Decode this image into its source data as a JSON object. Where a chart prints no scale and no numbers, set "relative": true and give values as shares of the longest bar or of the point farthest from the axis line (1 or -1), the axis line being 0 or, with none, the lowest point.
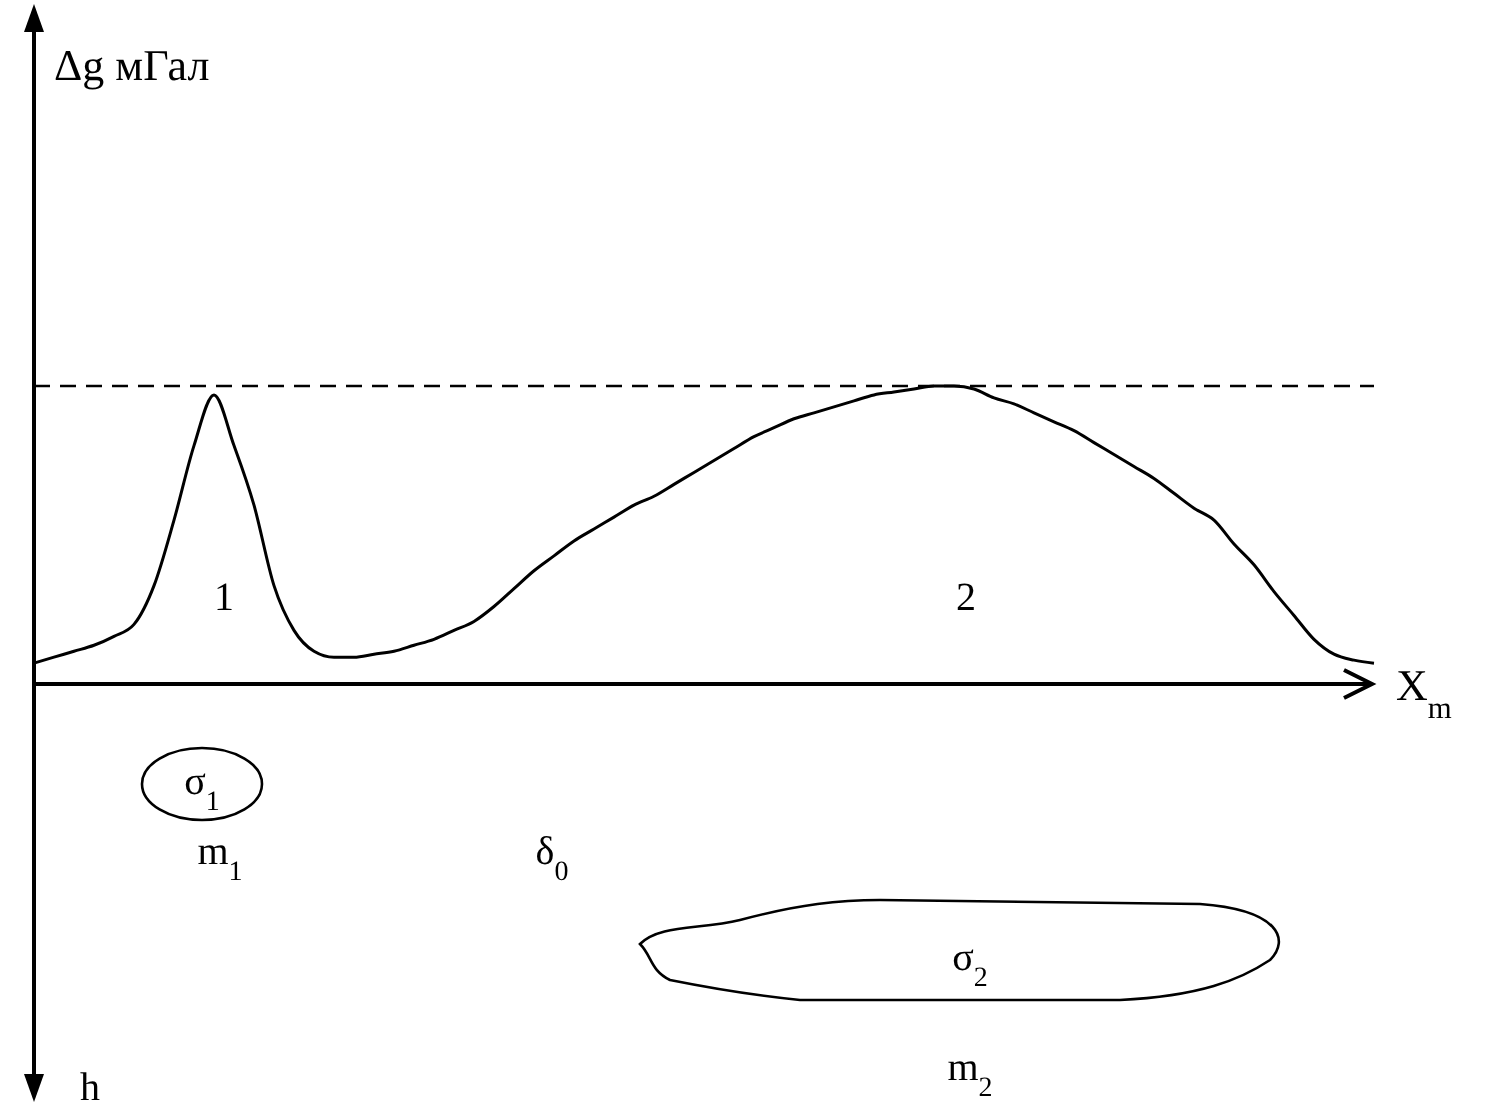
{
  "chart_data": {
    "type": "line",
    "relative": true,
    "xlabel": "X$_{m}$",
    "categories": [
      null,
      null,
      null,
      null,
      null,
      null,
      null,
      null,
      null,
      null,
      null,
      null,
      null,
      null,
      null,
      null,
      null,
      null,
      null,
      null,
      null,
      null,
      null,
      null,
      null,
      null,
      null,
      null,
      null,
      null,
      null,
      null,
      null,
      null,
      null,
      null,
      null,
      null,
      null,
      null,
      null,
      null,
      null,
      null,
      null,
      null,
      null,
      null,
      null,
      null,
      null,
      null,
      null,
      null,
      null,
      null,
      null,
      null,
      null,
      null,
      null,
      null,
      null,
      null,
      null,
      null,
      null,
      null
    ],
    "series": [
      {
        "color": "#000000",
        "values": [
          0.07,
          0.09,
          0.11,
          0.13,
          0.16,
          0.2,
          0.33,
          0.55,
          0.8,
          0.97,
          0.8,
          0.6,
          0.33,
          0.18,
          0.11,
          0.09,
          0.09,
          0.1,
          0.11,
          0.13,
          0.15,
          0.18,
          0.21,
          0.26,
          0.32,
          0.38,
          0.43,
          0.48,
          0.52,
          0.56,
          0.6,
          0.63,
          0.67,
          0.71,
          0.75,
          0.79,
          0.83,
          0.86,
          0.89,
          0.91,
          0.93,
          0.95,
          0.97,
          0.98,
          0.99,
          1,
          1,
          0.99,
          0.96,
          0.94,
          0.91,
          0.88,
          0.85,
          0.81,
          0.77,
          0.73,
          0.69,
          0.64,
          0.59,
          0.55,
          0.47,
          0.4,
          0.31,
          0.23,
          0.15,
          0.1,
          0.08,
          0.07
        ]
      }
    ],
    "ref_lines": [
      {
        "axis": "y",
        "value": 1,
        "color": "#000000",
        "line_style": "dashed"
      }
    ],
    "annotations": [
      "Δg мГал",
      "1",
      "2",
      "σ$_{1}$",
      "m$_{1}$",
      "δ$_{0}$",
      "σ$_{2}$",
      "m$_{2}$",
      "h"
    ],
    "marker": "none",
    "line_style": "solid",
    "grid": false
  }
}
